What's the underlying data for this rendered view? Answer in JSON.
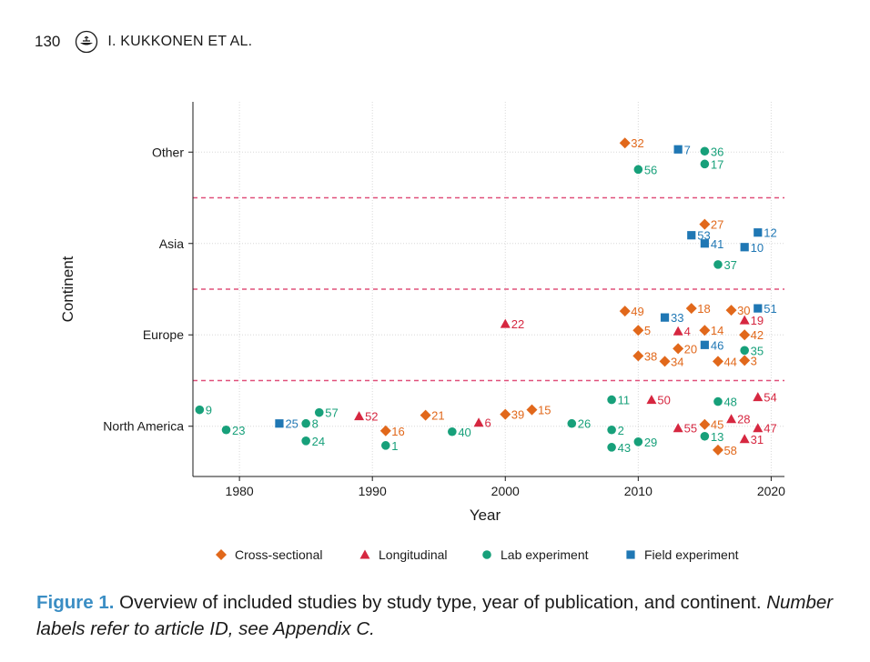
{
  "header": {
    "page_number": "130",
    "running_head": "I. KUKKONEN ET AL."
  },
  "caption": {
    "label": "Figure 1.",
    "text": " Overview of included studies by study type, year of publication, and continent. ",
    "note": "Number labels refer to article ID, see Appendix C."
  },
  "colors": {
    "cross": "#e1681b",
    "long": "#d62740",
    "lab": "#17a07a",
    "field": "#1f77b4",
    "separator": "#e0507a",
    "grid": "#d8d8d8"
  },
  "chart_data": {
    "type": "scatter",
    "title": "",
    "xlabel": "Year",
    "ylabel": "Continent",
    "xlim": [
      1976.5,
      2021
    ],
    "xticks": [
      1980,
      1990,
      2000,
      2010,
      2020
    ],
    "categories": [
      "North America",
      "Europe",
      "Asia",
      "Other"
    ],
    "ylim": [
      -0.55,
      3.55
    ],
    "legend_position": "bottom",
    "series": [
      {
        "name": "Cross-sectional",
        "key": "cross",
        "marker": "diamond",
        "points": [
          {
            "id": "32",
            "year": 2009,
            "y": 3.1
          },
          {
            "id": "27",
            "year": 2015,
            "y": 2.21
          },
          {
            "id": "49",
            "year": 2009,
            "y": 1.26
          },
          {
            "id": "18",
            "year": 2014,
            "y": 1.29
          },
          {
            "id": "30",
            "year": 2017,
            "y": 1.27
          },
          {
            "id": "5",
            "year": 2010,
            "y": 1.05
          },
          {
            "id": "14",
            "year": 2015,
            "y": 1.05
          },
          {
            "id": "42",
            "year": 2018,
            "y": 1.0
          },
          {
            "id": "20",
            "year": 2013,
            "y": 0.85
          },
          {
            "id": "38",
            "year": 2010,
            "y": 0.77
          },
          {
            "id": "34",
            "year": 2012,
            "y": 0.71
          },
          {
            "id": "44",
            "year": 2016,
            "y": 0.71
          },
          {
            "id": "3",
            "year": 2018,
            "y": 0.72
          },
          {
            "id": "21",
            "year": 1994,
            "y": 0.12
          },
          {
            "id": "39",
            "year": 2000,
            "y": 0.13
          },
          {
            "id": "15",
            "year": 2002,
            "y": 0.18
          },
          {
            "id": "16",
            "year": 1991,
            "y": -0.05
          },
          {
            "id": "45",
            "year": 2015,
            "y": 0.02
          },
          {
            "id": "58",
            "year": 2016,
            "y": -0.26
          }
        ]
      },
      {
        "name": "Longitudinal",
        "key": "long",
        "marker": "triangle",
        "points": [
          {
            "id": "22",
            "year": 2000,
            "y": 1.12
          },
          {
            "id": "4",
            "year": 2013,
            "y": 1.04
          },
          {
            "id": "19",
            "year": 2018,
            "y": 1.16
          },
          {
            "id": "50",
            "year": 2011,
            "y": 0.29
          },
          {
            "id": "54",
            "year": 2019,
            "y": 0.32
          },
          {
            "id": "52",
            "year": 1989,
            "y": 0.11
          },
          {
            "id": "6",
            "year": 1998,
            "y": 0.04
          },
          {
            "id": "28",
            "year": 2017,
            "y": 0.08
          },
          {
            "id": "55",
            "year": 2013,
            "y": -0.02
          },
          {
            "id": "47",
            "year": 2019,
            "y": -0.02
          },
          {
            "id": "31",
            "year": 2018,
            "y": -0.14
          }
        ]
      },
      {
        "name": "Lab experiment",
        "key": "lab",
        "marker": "circle",
        "points": [
          {
            "id": "36",
            "year": 2015,
            "y": 3.01
          },
          {
            "id": "17",
            "year": 2015,
            "y": 2.87
          },
          {
            "id": "56",
            "year": 2010,
            "y": 2.81
          },
          {
            "id": "37",
            "year": 2016,
            "y": 1.77
          },
          {
            "id": "35",
            "year": 2018,
            "y": 0.83
          },
          {
            "id": "11",
            "year": 2008,
            "y": 0.29
          },
          {
            "id": "48",
            "year": 2016,
            "y": 0.27
          },
          {
            "id": "9",
            "year": 1977,
            "y": 0.18
          },
          {
            "id": "57",
            "year": 1986,
            "y": 0.15
          },
          {
            "id": "26",
            "year": 2005,
            "y": 0.03
          },
          {
            "id": "8",
            "year": 1985,
            "y": 0.03
          },
          {
            "id": "23",
            "year": 1979,
            "y": -0.04
          },
          {
            "id": "40",
            "year": 1996,
            "y": -0.06
          },
          {
            "id": "2",
            "year": 2008,
            "y": -0.04
          },
          {
            "id": "13",
            "year": 2015,
            "y": -0.11
          },
          {
            "id": "24",
            "year": 1985,
            "y": -0.16
          },
          {
            "id": "29",
            "year": 2010,
            "y": -0.17
          },
          {
            "id": "1",
            "year": 1991,
            "y": -0.21
          },
          {
            "id": "43",
            "year": 2008,
            "y": -0.23
          }
        ]
      },
      {
        "name": "Field experiment",
        "key": "field",
        "marker": "square",
        "points": [
          {
            "id": "7",
            "year": 2013,
            "y": 3.03
          },
          {
            "id": "53",
            "year": 2014,
            "y": 2.09
          },
          {
            "id": "12",
            "year": 2019,
            "y": 2.12
          },
          {
            "id": "41",
            "year": 2015,
            "y": 2.0
          },
          {
            "id": "10",
            "year": 2018,
            "y": 1.96
          },
          {
            "id": "33",
            "year": 2012,
            "y": 1.19
          },
          {
            "id": "51",
            "year": 2019,
            "y": 1.29
          },
          {
            "id": "46",
            "year": 2015,
            "y": 0.89
          },
          {
            "id": "25",
            "year": 1983,
            "y": 0.03
          }
        ]
      }
    ]
  }
}
